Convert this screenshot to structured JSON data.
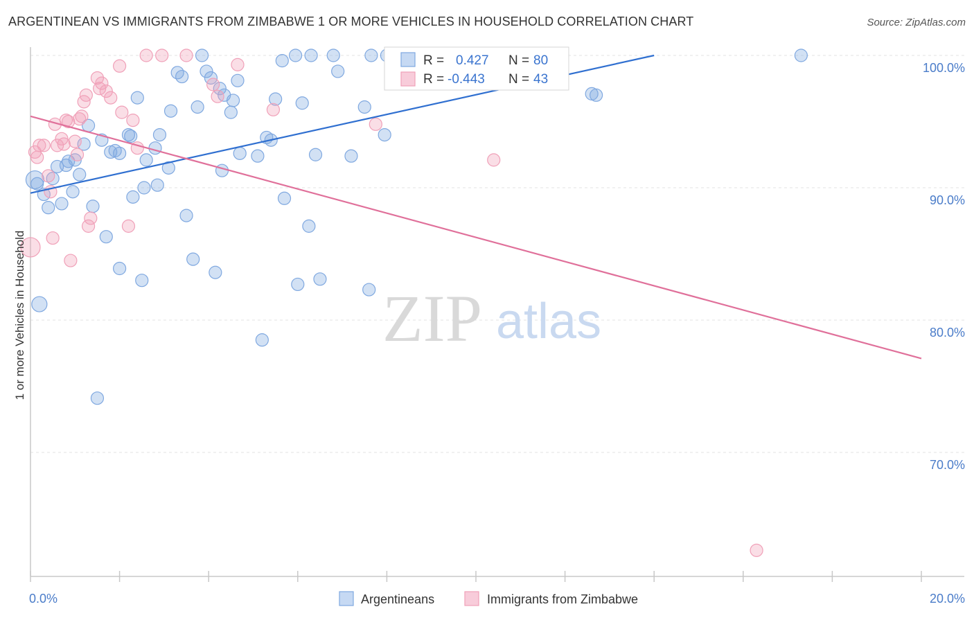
{
  "title": "ARGENTINEAN VS IMMIGRANTS FROM ZIMBABWE 1 OR MORE VEHICLES IN HOUSEHOLD CORRELATION CHART",
  "source": "Source: ZipAtlas.com",
  "watermark": {
    "zip": "ZIP",
    "atlas": "atlas"
  },
  "colors": {
    "blue": "#7fa8e0",
    "blue_line": "#2f6fd0",
    "pink": "#f0a0b8",
    "pink_line": "#e0709a",
    "tick_text": "#4a7cc9"
  },
  "legend_top": {
    "rows": [
      {
        "r_label": "R =",
        "r_value": "0.427",
        "n_label": "N =",
        "n_value": "80"
      },
      {
        "r_label": "R =",
        "r_value": "-0.443",
        "n_label": "N =",
        "n_value": "43"
      }
    ]
  },
  "legend_bottom": [
    "Argentineans",
    "Immigrants from Zimbabwe"
  ],
  "chart_data": {
    "type": "scatter",
    "title": "ARGENTINEAN VS IMMIGRANTS FROM ZIMBABWE 1 OR MORE VEHICLES IN HOUSEHOLD CORRELATION CHART",
    "xlabel": "",
    "ylabel": "1 or more Vehicles in Household",
    "x_tick_labels": [
      "0.0%",
      "20.0%"
    ],
    "y_tick_labels": [
      "100.0%",
      "90.0%",
      "80.0%",
      "70.0%"
    ],
    "xlim": [
      0,
      20
    ],
    "ylim": [
      61.5,
      101.5
    ],
    "grid": true,
    "series": [
      {
        "name": "Argentineans",
        "color": "#7fa8e0",
        "trend": {
          "x": [
            0,
            14
          ],
          "y": [
            89.6,
            100.0
          ]
        },
        "points": [
          [
            0.1,
            90.6
          ],
          [
            0.2,
            81.2
          ],
          [
            0.3,
            89.5
          ],
          [
            0.4,
            88.5
          ],
          [
            0.5,
            90.7
          ],
          [
            0.6,
            91.6
          ],
          [
            0.7,
            88.8
          ],
          [
            0.8,
            91.7
          ],
          [
            0.85,
            92.0
          ],
          [
            0.95,
            89.7
          ],
          [
            1.0,
            92.1
          ],
          [
            1.1,
            91.0
          ],
          [
            1.2,
            93.3
          ],
          [
            1.3,
            94.7
          ],
          [
            1.4,
            88.6
          ],
          [
            1.5,
            74.1
          ],
          [
            1.6,
            93.6
          ],
          [
            1.7,
            86.3
          ],
          [
            1.8,
            92.7
          ],
          [
            1.9,
            92.8
          ],
          [
            2.0,
            92.6
          ],
          [
            2.0,
            83.9
          ],
          [
            2.2,
            94.0
          ],
          [
            2.25,
            93.9
          ],
          [
            2.3,
            89.3
          ],
          [
            2.4,
            96.8
          ],
          [
            2.5,
            83.0
          ],
          [
            2.55,
            90.0
          ],
          [
            2.6,
            92.1
          ],
          [
            2.8,
            93.0
          ],
          [
            2.85,
            90.2
          ],
          [
            2.9,
            94.0
          ],
          [
            3.1,
            91.5
          ],
          [
            3.15,
            95.8
          ],
          [
            3.3,
            98.7
          ],
          [
            3.4,
            98.4
          ],
          [
            3.5,
            87.9
          ],
          [
            3.65,
            84.6
          ],
          [
            3.75,
            96.1
          ],
          [
            3.85,
            100.0
          ],
          [
            3.95,
            98.8
          ],
          [
            4.05,
            98.3
          ],
          [
            4.15,
            83.6
          ],
          [
            4.25,
            97.5
          ],
          [
            4.3,
            91.3
          ],
          [
            4.35,
            97.0
          ],
          [
            4.5,
            95.7
          ],
          [
            4.55,
            96.6
          ],
          [
            4.65,
            98.1
          ],
          [
            4.7,
            92.6
          ],
          [
            5.1,
            92.4
          ],
          [
            5.2,
            78.5
          ],
          [
            5.3,
            93.8
          ],
          [
            5.4,
            93.6
          ],
          [
            5.5,
            96.7
          ],
          [
            5.65,
            99.6
          ],
          [
            5.7,
            89.2
          ],
          [
            5.95,
            100.0
          ],
          [
            6.0,
            82.7
          ],
          [
            6.1,
            96.4
          ],
          [
            6.25,
            87.1
          ],
          [
            6.3,
            100.0
          ],
          [
            6.4,
            92.5
          ],
          [
            6.5,
            83.1
          ],
          [
            6.8,
            100.0
          ],
          [
            6.9,
            98.8
          ],
          [
            7.2,
            92.4
          ],
          [
            7.5,
            96.1
          ],
          [
            7.6,
            82.3
          ],
          [
            7.65,
            100.0
          ],
          [
            7.95,
            94.0
          ],
          [
            8.0,
            100.0
          ],
          [
            8.5,
            99.0
          ],
          [
            8.6,
            100.0
          ],
          [
            9.0,
            100.0
          ],
          [
            9.3,
            100.0
          ],
          [
            12.6,
            97.1
          ],
          [
            12.7,
            97.0
          ],
          [
            17.3,
            100.0
          ],
          [
            0.15,
            90.3
          ]
        ]
      },
      {
        "name": "Immigrants from Zimbabwe",
        "color": "#f0a0b8",
        "trend": {
          "x": [
            0,
            20
          ],
          "y": [
            95.4,
            77.1
          ]
        },
        "points": [
          [
            0.0,
            85.5
          ],
          [
            0.1,
            92.7
          ],
          [
            0.15,
            92.3
          ],
          [
            0.2,
            93.2
          ],
          [
            0.3,
            93.2
          ],
          [
            0.4,
            90.9
          ],
          [
            0.45,
            89.7
          ],
          [
            0.5,
            86.2
          ],
          [
            0.55,
            94.8
          ],
          [
            0.6,
            93.2
          ],
          [
            0.7,
            93.7
          ],
          [
            0.75,
            93.3
          ],
          [
            0.8,
            95.1
          ],
          [
            0.85,
            95.0
          ],
          [
            0.9,
            84.5
          ],
          [
            1.0,
            93.5
          ],
          [
            1.05,
            92.5
          ],
          [
            1.1,
            95.2
          ],
          [
            1.15,
            95.4
          ],
          [
            1.2,
            96.5
          ],
          [
            1.25,
            97.0
          ],
          [
            1.3,
            87.1
          ],
          [
            1.35,
            87.7
          ],
          [
            1.5,
            98.3
          ],
          [
            1.55,
            97.5
          ],
          [
            1.6,
            97.9
          ],
          [
            1.7,
            97.3
          ],
          [
            1.8,
            96.8
          ],
          [
            2.0,
            99.2
          ],
          [
            2.05,
            95.7
          ],
          [
            2.2,
            87.1
          ],
          [
            2.3,
            95.1
          ],
          [
            2.4,
            93.0
          ],
          [
            2.6,
            100.0
          ],
          [
            2.95,
            100.0
          ],
          [
            3.5,
            100.0
          ],
          [
            4.1,
            97.8
          ],
          [
            4.2,
            96.9
          ],
          [
            4.65,
            99.3
          ],
          [
            5.45,
            95.9
          ],
          [
            7.75,
            94.8
          ],
          [
            10.4,
            92.1
          ],
          [
            16.3,
            62.6
          ]
        ]
      }
    ]
  }
}
